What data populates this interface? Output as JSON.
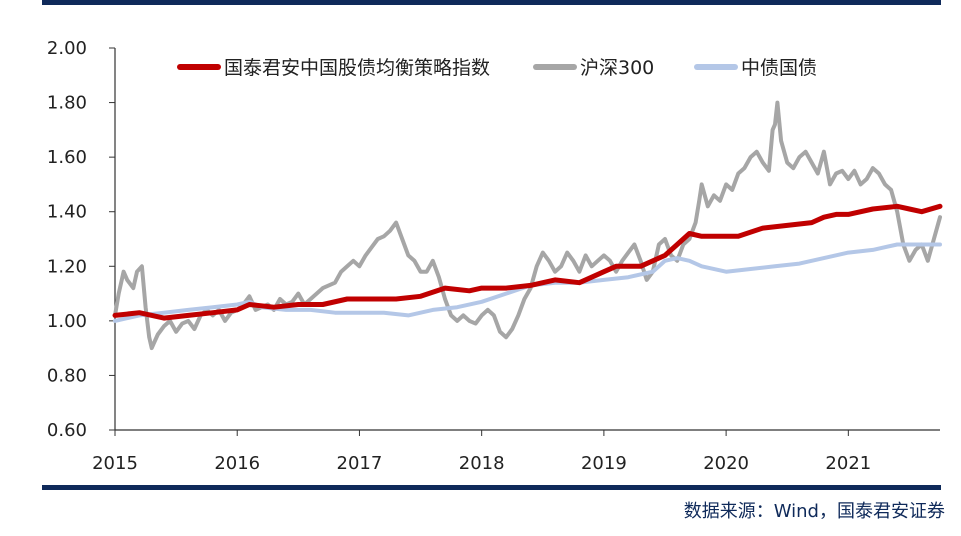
{
  "chart_data": {
    "type": "line",
    "title": "",
    "xlabel": "",
    "ylabel": "",
    "xlim": [
      2015.0,
      2021.75
    ],
    "ylim": [
      0.6,
      2.0
    ],
    "x_ticks": [
      "2015",
      "2016",
      "2017",
      "2018",
      "2019",
      "2020",
      "2021"
    ],
    "y_ticks": [
      "0.60",
      "0.80",
      "1.00",
      "1.20",
      "1.40",
      "1.60",
      "1.80",
      "2.00"
    ],
    "grid": false,
    "legend_position": "top",
    "series": [
      {
        "name": "国泰君安中国股债均衡策略指数",
        "color": "#c00000",
        "x": [
          2015.0,
          2015.2,
          2015.4,
          2015.6,
          2015.8,
          2016.0,
          2016.1,
          2016.3,
          2016.5,
          2016.7,
          2016.9,
          2017.0,
          2017.3,
          2017.5,
          2017.7,
          2017.9,
          2018.0,
          2018.2,
          2018.4,
          2018.6,
          2018.8,
          2019.0,
          2019.1,
          2019.3,
          2019.5,
          2019.6,
          2019.7,
          2019.8,
          2020.0,
          2020.1,
          2020.3,
          2020.5,
          2020.7,
          2020.8,
          2020.9,
          2021.0,
          2021.2,
          2021.4,
          2021.5,
          2021.6,
          2021.75
        ],
        "values": [
          1.02,
          1.03,
          1.01,
          1.02,
          1.03,
          1.04,
          1.06,
          1.05,
          1.06,
          1.06,
          1.08,
          1.08,
          1.08,
          1.09,
          1.12,
          1.11,
          1.12,
          1.12,
          1.13,
          1.15,
          1.14,
          1.18,
          1.2,
          1.2,
          1.24,
          1.28,
          1.32,
          1.31,
          1.31,
          1.31,
          1.34,
          1.35,
          1.36,
          1.38,
          1.39,
          1.39,
          1.41,
          1.42,
          1.41,
          1.4,
          1.42
        ]
      },
      {
        "name": "沪深300",
        "color": "#a6a6a6",
        "x": [
          2015.0,
          2015.03,
          2015.07,
          2015.1,
          2015.15,
          2015.18,
          2015.22,
          2015.25,
          2015.28,
          2015.3,
          2015.32,
          2015.35,
          2015.4,
          2015.45,
          2015.5,
          2015.55,
          2015.6,
          2015.65,
          2015.7,
          2015.75,
          2015.8,
          2015.85,
          2015.9,
          2015.95,
          2016.0,
          2016.05,
          2016.1,
          2016.15,
          2016.2,
          2016.25,
          2016.3,
          2016.35,
          2016.4,
          2016.45,
          2016.5,
          2016.55,
          2016.6,
          2016.7,
          2016.8,
          2016.85,
          2016.9,
          2016.95,
          2017.0,
          2017.05,
          2017.1,
          2017.15,
          2017.2,
          2017.25,
          2017.3,
          2017.35,
          2017.4,
          2017.45,
          2017.5,
          2017.55,
          2017.6,
          2017.65,
          2017.7,
          2017.75,
          2017.8,
          2017.85,
          2017.9,
          2017.95,
          2018.0,
          2018.05,
          2018.1,
          2018.15,
          2018.2,
          2018.25,
          2018.3,
          2018.35,
          2018.4,
          2018.45,
          2018.5,
          2018.55,
          2018.6,
          2018.65,
          2018.7,
          2018.75,
          2018.8,
          2018.85,
          2018.9,
          2018.95,
          2019.0,
          2019.05,
          2019.1,
          2019.15,
          2019.2,
          2019.25,
          2019.3,
          2019.35,
          2019.4,
          2019.45,
          2019.5,
          2019.55,
          2019.6,
          2019.65,
          2019.7,
          2019.75,
          2019.78,
          2019.8,
          2019.85,
          2019.9,
          2019.95,
          2020.0,
          2020.05,
          2020.1,
          2020.15,
          2020.2,
          2020.25,
          2020.3,
          2020.35,
          2020.38,
          2020.4,
          2020.42,
          2020.45,
          2020.5,
          2020.55,
          2020.6,
          2020.65,
          2020.7,
          2020.75,
          2020.8,
          2020.85,
          2020.9,
          2020.95,
          2021.0,
          2021.05,
          2021.1,
          2021.15,
          2021.2,
          2021.25,
          2021.3,
          2021.35,
          2021.4,
          2021.45,
          2021.5,
          2021.55,
          2021.6,
          2021.65,
          2021.7,
          2021.75
        ],
        "values": [
          1.02,
          1.1,
          1.18,
          1.15,
          1.12,
          1.18,
          1.2,
          1.05,
          0.94,
          0.9,
          0.92,
          0.95,
          0.98,
          1.0,
          0.96,
          0.99,
          1.0,
          0.97,
          1.02,
          1.04,
          1.02,
          1.04,
          1.0,
          1.03,
          1.04,
          1.06,
          1.09,
          1.04,
          1.05,
          1.06,
          1.04,
          1.08,
          1.06,
          1.07,
          1.1,
          1.06,
          1.08,
          1.12,
          1.14,
          1.18,
          1.2,
          1.22,
          1.2,
          1.24,
          1.27,
          1.3,
          1.31,
          1.33,
          1.36,
          1.3,
          1.24,
          1.22,
          1.18,
          1.18,
          1.22,
          1.16,
          1.08,
          1.02,
          1.0,
          1.02,
          1.0,
          0.99,
          1.02,
          1.04,
          1.02,
          0.96,
          0.94,
          0.97,
          1.02,
          1.08,
          1.12,
          1.2,
          1.25,
          1.22,
          1.18,
          1.2,
          1.25,
          1.22,
          1.18,
          1.24,
          1.2,
          1.22,
          1.24,
          1.22,
          1.18,
          1.22,
          1.25,
          1.28,
          1.22,
          1.15,
          1.18,
          1.28,
          1.3,
          1.24,
          1.22,
          1.28,
          1.3,
          1.36,
          1.44,
          1.5,
          1.42,
          1.46,
          1.44,
          1.5,
          1.48,
          1.54,
          1.56,
          1.6,
          1.62,
          1.58,
          1.55,
          1.7,
          1.72,
          1.8,
          1.66,
          1.58,
          1.56,
          1.6,
          1.62,
          1.58,
          1.54,
          1.62,
          1.5,
          1.54,
          1.55,
          1.52,
          1.55,
          1.5,
          1.52,
          1.56,
          1.54,
          1.5,
          1.48,
          1.4,
          1.28,
          1.22,
          1.26,
          1.28,
          1.22,
          1.3,
          1.38
        ]
      },
      {
        "name": "中债国债",
        "color": "#b4c7e7",
        "x": [
          2015.0,
          2015.2,
          2015.4,
          2015.6,
          2015.8,
          2016.0,
          2016.1,
          2016.2,
          2016.4,
          2016.6,
          2016.8,
          2017.0,
          2017.2,
          2017.4,
          2017.6,
          2017.8,
          2018.0,
          2018.2,
          2018.4,
          2018.6,
          2018.8,
          2019.0,
          2019.2,
          2019.4,
          2019.5,
          2019.6,
          2019.7,
          2019.8,
          2020.0,
          2020.2,
          2020.4,
          2020.6,
          2020.8,
          2021.0,
          2021.2,
          2021.4,
          2021.6,
          2021.75
        ],
        "values": [
          1.0,
          1.02,
          1.03,
          1.04,
          1.05,
          1.06,
          1.07,
          1.05,
          1.04,
          1.04,
          1.03,
          1.03,
          1.03,
          1.02,
          1.04,
          1.05,
          1.07,
          1.1,
          1.13,
          1.14,
          1.14,
          1.15,
          1.16,
          1.18,
          1.22,
          1.23,
          1.22,
          1.2,
          1.18,
          1.19,
          1.2,
          1.21,
          1.23,
          1.25,
          1.26,
          1.28,
          1.28,
          1.28
        ]
      }
    ]
  },
  "source_text": "数据来源：Wind，国泰君安证券"
}
